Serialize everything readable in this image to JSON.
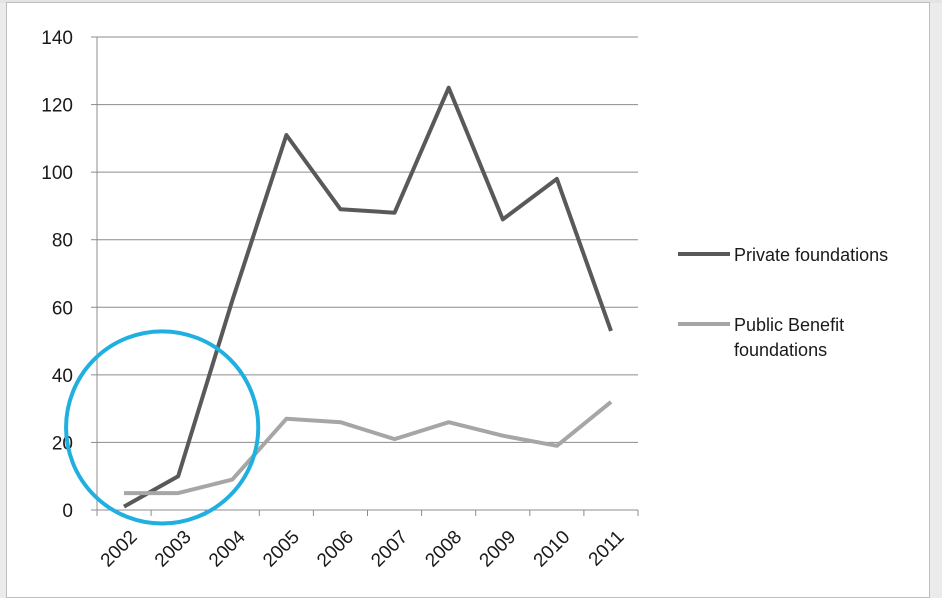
{
  "chart_data": {
    "type": "line",
    "title": "",
    "xlabel": "",
    "ylabel": "",
    "categories": [
      "2002",
      "2003",
      "2004",
      "2005",
      "2006",
      "2007",
      "2008",
      "2009",
      "2010",
      "2011"
    ],
    "ylim": [
      0,
      140
    ],
    "yticks": [
      0,
      20,
      40,
      60,
      80,
      100,
      120,
      140
    ],
    "grid": true,
    "legend_position": "right",
    "series": [
      {
        "name": "Private foundations",
        "color": "#595959",
        "values": [
          1,
          10,
          62,
          111,
          89,
          88,
          125,
          86,
          98,
          53
        ]
      },
      {
        "name": "Public Benefit foundations",
        "color": "#a6a6a6",
        "values": [
          5,
          5,
          9,
          27,
          26,
          21,
          26,
          22,
          19,
          32
        ]
      }
    ],
    "legend_lines": [
      [
        "Private foundations"
      ],
      [
        "Public Benefit",
        "foundations"
      ]
    ],
    "annotation": {
      "shape": "circle",
      "color": "#1fb0e0",
      "x_near": [
        "2002",
        "2004"
      ],
      "y_near": [
        0,
        40
      ]
    }
  }
}
